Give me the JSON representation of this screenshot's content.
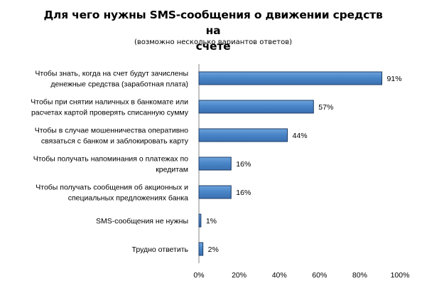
{
  "title_line1": "Для чего нужны SMS-сообщения о движении средств на",
  "title_line2": "счете",
  "subtitle": "(возможно несколько вариантов ответов)",
  "chart_data": {
    "type": "bar",
    "orientation": "horizontal",
    "title": "Для чего нужны SMS-сообщения о движении средств на счете",
    "subtitle": "(возможно несколько вариантов ответов)",
    "categories": [
      [
        "Чтобы знать, когда на счет будут зачислены",
        "денежные  средства (заработная плата)"
      ],
      [
        "Чтобы при снятии наличных в банкомате или",
        "расчетах картой проверять  списанную сумму"
      ],
      [
        "Чтобы в случае мошенничества  оперативно",
        "связаться с банком и заблокировать карту"
      ],
      [
        "Чтобы получать напоминания о платежах по",
        "кредитам"
      ],
      [
        "Чтобы получать сообщения  об акционных и",
        "специальных предложениях  банка"
      ],
      [
        "SMS-сообщения  не нужны"
      ],
      [
        "Трудно ответить"
      ]
    ],
    "values": [
      91,
      57,
      44,
      16,
      16,
      1,
      2
    ],
    "value_labels": [
      "91%",
      "57%",
      "44%",
      "16%",
      "16%",
      "1%",
      "2%"
    ],
    "xlim": [
      0,
      100
    ],
    "xticks": [
      "0%",
      "20%",
      "40%",
      "60%",
      "80%",
      "100%"
    ],
    "grid": false,
    "legend": "none",
    "bar_color": "#4a86c8",
    "bar_edge_color": "#1f3d66"
  }
}
